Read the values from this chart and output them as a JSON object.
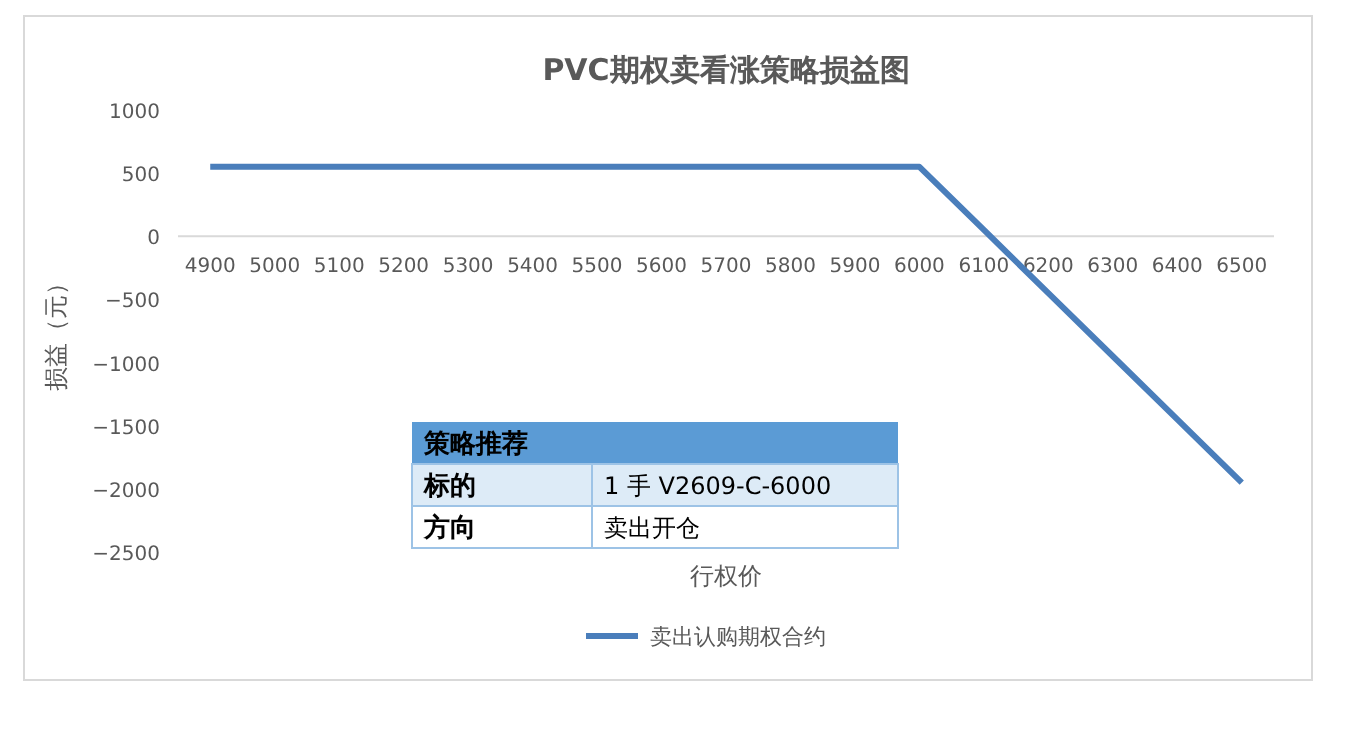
{
  "chart_data": {
    "type": "line",
    "title": "PVC期权卖看涨策略损益图",
    "xlabel": "行权价",
    "ylabel": "损益（元）",
    "categories": [
      "4900",
      "5000",
      "5100",
      "5200",
      "5300",
      "5400",
      "5500",
      "5600",
      "5700",
      "5800",
      "5900",
      "6000",
      "6100",
      "6200",
      "6300",
      "6400",
      "6500"
    ],
    "series": [
      {
        "name": "卖出认购期权合约",
        "color": "#4a7ebb",
        "values": [
          550,
          550,
          550,
          550,
          550,
          550,
          550,
          550,
          550,
          550,
          550,
          550,
          50,
          -450,
          -950,
          -1450,
          -1950
        ]
      }
    ],
    "ylim": [
      -2500,
      1000
    ],
    "yticks": [
      {
        "value": -2500,
        "label": "−2500"
      },
      {
        "value": -2000,
        "label": "−2000"
      },
      {
        "value": -1500,
        "label": "−1500"
      },
      {
        "value": -1000,
        "label": "−1000"
      },
      {
        "value": -500,
        "label": "−500"
      },
      0,
      500,
      1000
    ],
    "legend": "bottom",
    "grid": false,
    "annotations": [
      "策略推荐",
      "标的",
      "1 手 V2609-C-6000",
      "方向",
      "卖出开仓"
    ]
  }
}
